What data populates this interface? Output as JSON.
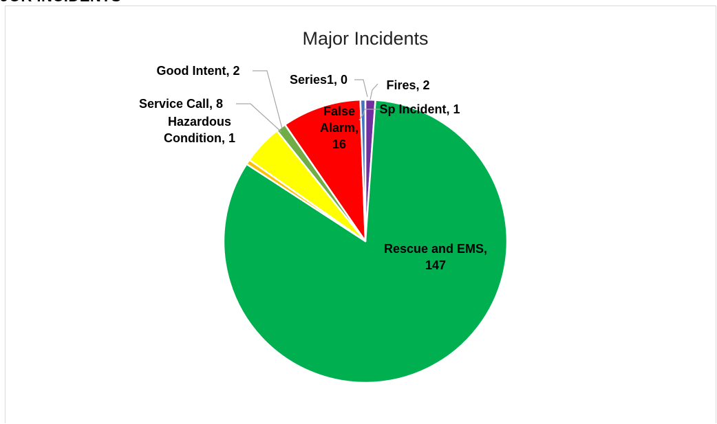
{
  "page": {
    "heading": "JOR INCIDENTS"
  },
  "chart_data": {
    "type": "pie",
    "title": "Major Incidents",
    "categories": [
      "Fires",
      "Rescue and EMS",
      "Hazardous Condition",
      "Service Call",
      "Good Intent",
      "Series1",
      "False Alarm",
      "Sp Incident"
    ],
    "values": [
      2,
      147,
      1,
      8,
      2,
      0,
      16,
      1
    ],
    "colors": [
      "#7030a0",
      "#00b050",
      "#ffc000",
      "#ffff00",
      "#70ad47",
      "#002060",
      "#ff0000",
      "#4472c4"
    ],
    "data_labels": [
      [
        "Fires, 2"
      ],
      [
        "Rescue and EMS,",
        "147"
      ],
      [
        "Hazardous",
        "Condition, 1"
      ],
      [
        "Service Call, 8"
      ],
      [
        "Good Intent, 2"
      ],
      [
        "Series1, 0"
      ],
      [
        "False",
        "Alarm,",
        "16"
      ],
      [
        "Sp Incident, 1"
      ]
    ],
    "legend": "none"
  }
}
